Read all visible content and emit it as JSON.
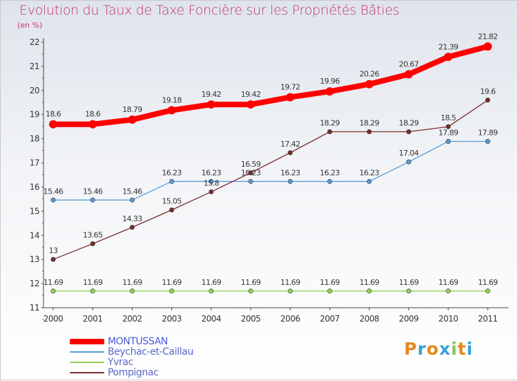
{
  "title": "Evolution du Taux de Taxe Foncière sur les Propriétés Bâties",
  "unit_label": "(en %)",
  "logo": {
    "text": "Proxiti",
    "letters": [
      "P",
      "r",
      "o",
      "x",
      "i",
      "t",
      "i"
    ],
    "colors": [
      "#e58a1f",
      "#3aa0d8",
      "#e58a1f",
      "#3aa0d8",
      "#8bc34a",
      "#e58a1f",
      "#3aa0d8"
    ]
  },
  "chart_data": {
    "type": "line",
    "title": "Evolution du Taux de Taxe Foncière sur les Propriétés Bâties",
    "ylabel": "(en %)",
    "xlabel": "",
    "ylim": [
      11,
      22
    ],
    "yticks": [
      11,
      12,
      13,
      14,
      15,
      16,
      17,
      18,
      19,
      20,
      21,
      22
    ],
    "x": [
      "2000",
      "2001",
      "2002",
      "2003",
      "2004",
      "2005",
      "2006",
      "2007",
      "2008",
      "2009",
      "2010",
      "2011"
    ],
    "series": [
      {
        "name": "MONTUSSAN",
        "color": "#ff0000",
        "emphasis": true,
        "values": [
          18.6,
          18.6,
          18.79,
          19.18,
          19.42,
          19.42,
          19.72,
          19.96,
          20.26,
          20.67,
          21.39,
          21.82
        ],
        "labels": [
          "18.6",
          "18.6",
          "18.79",
          "19.18",
          "19.42",
          "19.42",
          "19.72",
          "19.96",
          "20.26",
          "20.67",
          "21.39",
          "21.82"
        ]
      },
      {
        "name": "Beychac-et-Caillau",
        "color": "#5b9bd5",
        "values": [
          15.46,
          15.46,
          15.46,
          16.23,
          16.23,
          16.23,
          16.23,
          16.23,
          16.23,
          17.04,
          17.89,
          17.89
        ],
        "labels": [
          "15.46",
          "15.46",
          "15.46",
          "16.23",
          "16.23",
          "16.23",
          "16.23",
          "16.23",
          "16.23",
          "17.04",
          "17.89",
          "17.89"
        ]
      },
      {
        "name": "Yvrac",
        "color": "#92d050",
        "values": [
          11.69,
          11.69,
          11.69,
          11.69,
          11.69,
          11.69,
          11.69,
          11.69,
          11.69,
          11.69,
          11.69,
          11.69
        ],
        "labels": [
          "11.69",
          "11.69",
          "11.69",
          "11.69",
          "11.69",
          "11.69",
          "11.69",
          "11.69",
          "11.69",
          "11.69",
          "11.69",
          "11.69"
        ]
      },
      {
        "name": "Pompignac",
        "color": "#7b2c2c",
        "values": [
          13,
          13.65,
          14.33,
          15.05,
          15.8,
          16.59,
          17.42,
          18.29,
          18.29,
          18.29,
          18.5,
          19.6
        ],
        "labels": [
          "13",
          "13.65",
          "14.33",
          "15.05",
          "15.8",
          "16.59",
          "17.42",
          "18.29",
          "18.29",
          "18.29",
          "18.5",
          "19.6"
        ]
      }
    ],
    "legend_position": "bottom-left"
  }
}
